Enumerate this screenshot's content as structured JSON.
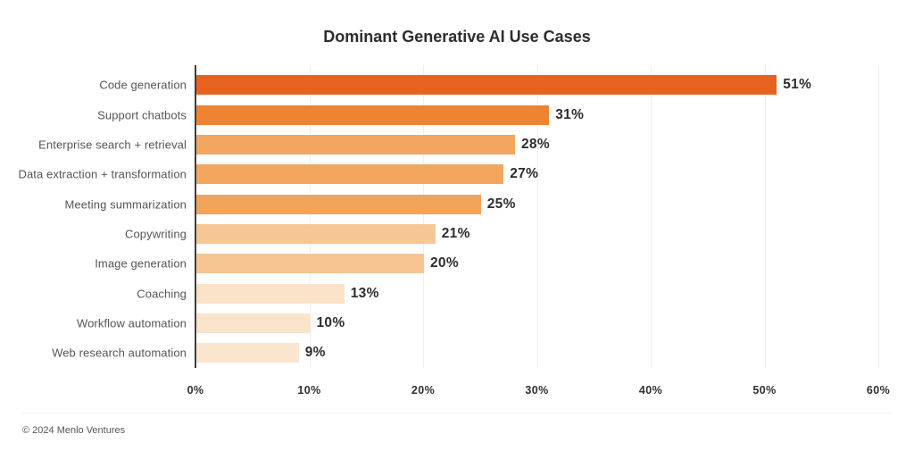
{
  "title": "Dominant Generative AI Use Cases",
  "footer": {
    "text": "© 2024 Menlo Ventures"
  },
  "chart_data": {
    "type": "bar",
    "orientation": "horizontal",
    "title": "Dominant Generative AI Use Cases",
    "categories": [
      "Code generation",
      "Support chatbots",
      "Enterprise search + retrieval",
      "Data extraction + transformation",
      "Meeting summarization",
      "Copywriting",
      "Image generation",
      "Coaching",
      "Workflow automation",
      "Web research automation"
    ],
    "values": [
      51,
      31,
      28,
      27,
      25,
      21,
      20,
      13,
      10,
      9
    ],
    "value_labels": [
      "51%",
      "31%",
      "28%",
      "27%",
      "25%",
      "21%",
      "20%",
      "13%",
      "10%",
      "9%"
    ],
    "bar_colors": [
      "#E5631F",
      "#EE8433",
      "#F3A660",
      "#F3A65E",
      "#F2A45A",
      "#F6C795",
      "#F6C592",
      "#FAE2C8",
      "#FAE4CC",
      "#FBE5CF"
    ],
    "xlabel": "",
    "ylabel": "",
    "xlim": [
      0,
      60
    ],
    "x_ticks": [
      "0%",
      "10%",
      "20%",
      "30%",
      "40%",
      "50%",
      "60%"
    ],
    "x_tick_values": [
      0,
      10,
      20,
      30,
      40,
      50,
      60
    ],
    "grid": "vertical",
    "legend": "none",
    "colors": {
      "background": "#ffffff",
      "axis": "#3d3d3d",
      "grid": "#efefef",
      "category_label": "#555555",
      "value_label": "#2d2d2d",
      "tick_label": "#303030",
      "title": "#2d2d2d",
      "footer_text": "#565656",
      "divider": "#ededed"
    }
  }
}
